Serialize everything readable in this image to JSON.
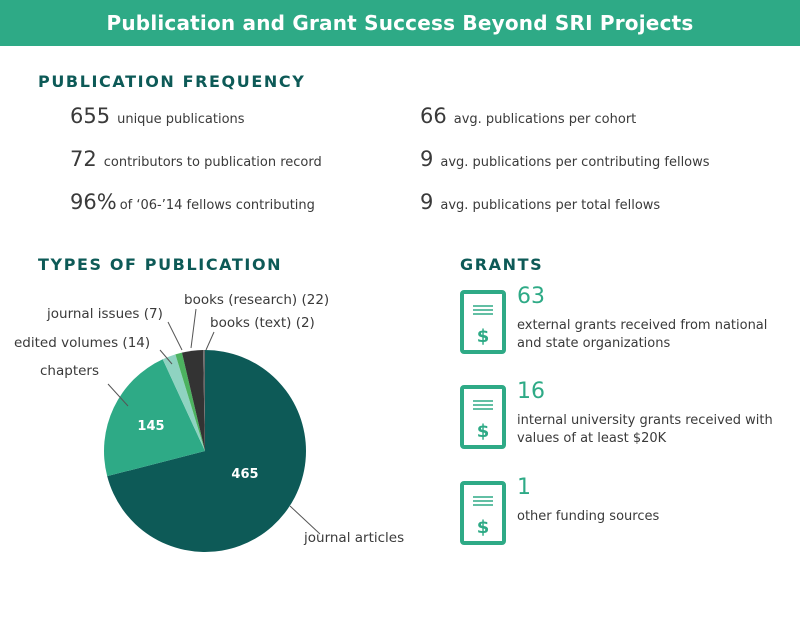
{
  "title": "Publication and Grant Success Beyond SRI Projects",
  "colors": {
    "brand": "#2eaa86",
    "dark_teal": "#0d5a57",
    "journal_articles": "#0d5a57",
    "chapters": "#2eaa86",
    "edited_volumes": "#8fd3c1",
    "journal_issues": "#4cb25f",
    "books_research": "#333333",
    "books_text": "#6a6a6a"
  },
  "frequency": {
    "heading": "PUBLICATION FREQUENCY",
    "left": [
      {
        "num": "655",
        "label": "unique publications"
      },
      {
        "num": "72",
        "label": "contributors to publication record"
      },
      {
        "num": "96%",
        "label": "of ‘06-’14 fellows contributing"
      }
    ],
    "right": [
      {
        "num": "66",
        "label": "avg. publications per cohort"
      },
      {
        "num": "9",
        "label": "avg. publications per contributing fellows"
      },
      {
        "num": "9",
        "label": "avg. publications per total fellows"
      }
    ]
  },
  "types_heading": "TYPES OF PUBLICATION",
  "chart_data": {
    "type": "pie",
    "slices": [
      {
        "label": "journal articles",
        "value": 465,
        "value_label": "465",
        "color": "#0d5a57"
      },
      {
        "label": "chapters",
        "value": 145,
        "value_label": "145",
        "color": "#2eaa86"
      },
      {
        "label": "edited volumes (14)",
        "value": 14,
        "value_label": "",
        "color": "#8fd3c1"
      },
      {
        "label": "journal issues (7)",
        "value": 7,
        "value_label": "",
        "color": "#4cb25f"
      },
      {
        "label": "books (research) (22)",
        "value": 22,
        "value_label": "",
        "color": "#333333"
      },
      {
        "label": "books (text) (2)",
        "value": 2,
        "value_label": "",
        "color": "#6a6a6a"
      }
    ],
    "start_angle": 0,
    "direction": "counterclockwise-from-top"
  },
  "grants": {
    "heading": "GRANTS",
    "items": [
      {
        "num": "63",
        "desc": "external grants received from national and state organizations"
      },
      {
        "num": "16",
        "desc": "internal university grants received with values of at least $20K"
      },
      {
        "num": "1",
        "desc": "other funding sources"
      }
    ],
    "icon_symbol": "$",
    "icon_name": "dollar-document-icon"
  }
}
